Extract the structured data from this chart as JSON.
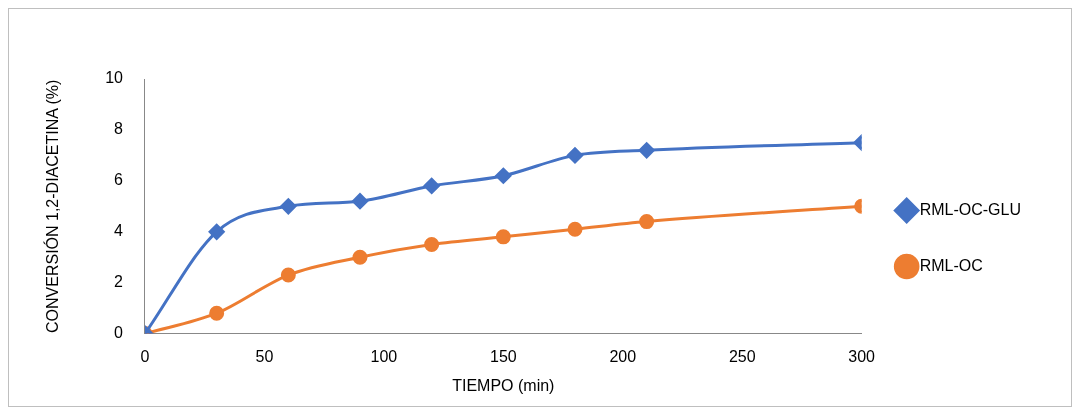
{
  "chart_data": {
    "type": "line",
    "xlabel": "TIEMPO (min)",
    "ylabel": "CONVERSIÓN 1,2-DIACETINA (%)",
    "x": [
      0,
      30,
      60,
      90,
      120,
      150,
      180,
      210,
      300
    ],
    "xlim": [
      0,
      300
    ],
    "xticks": [
      0,
      50,
      100,
      150,
      200,
      250,
      300
    ],
    "ylim": [
      0,
      10
    ],
    "yticks": [
      0,
      2,
      4,
      6,
      8,
      10
    ],
    "grid": false,
    "legend": "right",
    "series": [
      {
        "name": "RML-OC-GLU",
        "color": "#4472c4",
        "marker": "diamond",
        "values": [
          0,
          4,
          5,
          5.2,
          5.8,
          6.2,
          7,
          7.2,
          7.5
        ]
      },
      {
        "name": "RML-OC",
        "color": "#ed7d31",
        "marker": "circle",
        "values": [
          0,
          0.8,
          2.3,
          3,
          3.5,
          3.8,
          4.1,
          4.4,
          5
        ]
      }
    ]
  }
}
